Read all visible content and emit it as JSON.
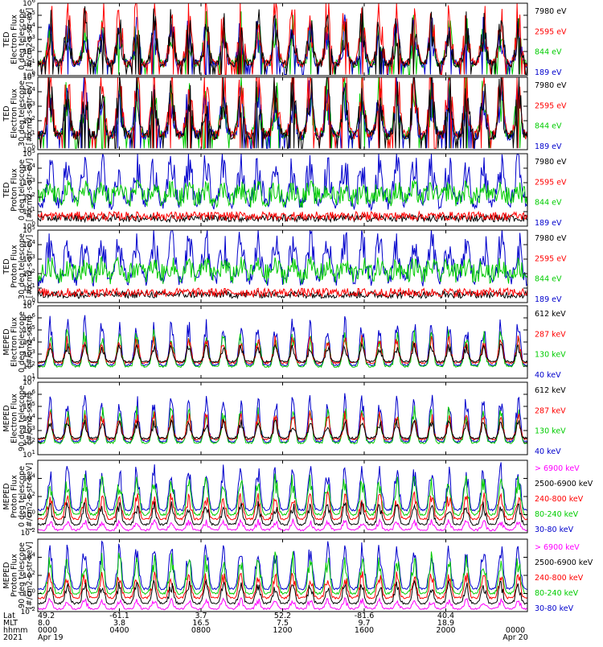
{
  "chart_data": [
    {
      "type": "line",
      "ylabel": [
        "TED",
        "Electron Flux",
        "0 deg telescope",
        "[#/cm2-s-str-eV]"
      ],
      "yscale": "log",
      "ylim_exp": [
        0,
        6
      ],
      "ytick_exp": [
        0,
        1,
        2,
        3,
        4,
        5,
        6
      ],
      "series": [
        {
          "name": "7980 eV",
          "color": "#000000"
        },
        {
          "name": "2595 eV",
          "color": "#ff0000"
        },
        {
          "name": "844 eV",
          "color": "#00cc00"
        },
        {
          "name": "189 eV",
          "color": "#0000cc"
        }
      ],
      "draw_order": [
        2,
        3,
        1,
        0
      ],
      "pattern": "ted_e"
    },
    {
      "type": "line",
      "ylabel": [
        "TED",
        "Electron Flux",
        "30 deg telescope",
        "[#/cm2-s-str-eV]"
      ],
      "yscale": "log",
      "ylim_exp": [
        0,
        5
      ],
      "ytick_exp": [
        0,
        1,
        2,
        3,
        4,
        5
      ],
      "series": [
        {
          "name": "7980 eV",
          "color": "#000000"
        },
        {
          "name": "2595 eV",
          "color": "#ff0000"
        },
        {
          "name": "844 eV",
          "color": "#00cc00"
        },
        {
          "name": "189 eV",
          "color": "#0000cc"
        }
      ],
      "draw_order": [
        2,
        3,
        1,
        0
      ],
      "pattern": "ted_e"
    },
    {
      "type": "line",
      "ylabel": [
        "TED",
        "Proton Flux",
        "0 deg telescope",
        "[#/cm2-s-str-eV]"
      ],
      "yscale": "log",
      "ylim_exp": [
        0,
        5
      ],
      "ytick_exp": [
        0,
        1,
        2,
        3,
        4,
        5
      ],
      "series": [
        {
          "name": "7980 eV",
          "color": "#000000"
        },
        {
          "name": "2595 eV",
          "color": "#ff0000"
        },
        {
          "name": "844 eV",
          "color": "#00cc00"
        },
        {
          "name": "189 eV",
          "color": "#0000cc"
        }
      ],
      "draw_order": [
        0,
        1,
        3,
        2
      ],
      "pattern": "ted_p"
    },
    {
      "type": "line",
      "ylabel": [
        "TED",
        "Proton Flux",
        "30 deg telescope",
        "[#/cm2-s-str-eV]"
      ],
      "yscale": "log",
      "ylim_exp": [
        0,
        5
      ],
      "ytick_exp": [
        0,
        1,
        2,
        3,
        4,
        5
      ],
      "series": [
        {
          "name": "7980 eV",
          "color": "#000000"
        },
        {
          "name": "2595 eV",
          "color": "#ff0000"
        },
        {
          "name": "844 eV",
          "color": "#00cc00"
        },
        {
          "name": "189 eV",
          "color": "#0000cc"
        }
      ],
      "draw_order": [
        0,
        1,
        3,
        2
      ],
      "pattern": "ted_p"
    },
    {
      "type": "line",
      "ylabel": [
        "MEPED",
        "Electron Flux",
        "0 deg telescope",
        "[#/cm2-s-str]"
      ],
      "yscale": "log",
      "ylim_exp": [
        1,
        7
      ],
      "ytick_exp": [
        1,
        2,
        3,
        4,
        5,
        6,
        7
      ],
      "series": [
        {
          "name": "612 keV",
          "color": "#000000"
        },
        {
          "name": "287 keV",
          "color": "#ff0000"
        },
        {
          "name": "130 keV",
          "color": "#00cc00"
        },
        {
          "name": "40 keV",
          "color": "#0000cc"
        }
      ],
      "draw_order": [
        3,
        2,
        1,
        0
      ],
      "pattern": "meped_e"
    },
    {
      "type": "line",
      "ylabel": [
        "MEPED",
        "Electron Flux",
        "90 deg telescope",
        "[#/cm2-s-str]"
      ],
      "yscale": "log",
      "ylim_exp": [
        1,
        7
      ],
      "ytick_exp": [
        1,
        2,
        3,
        4,
        5,
        6,
        7
      ],
      "series": [
        {
          "name": "612 keV",
          "color": "#000000"
        },
        {
          "name": "287 keV",
          "color": "#ff0000"
        },
        {
          "name": "130 keV",
          "color": "#00cc00"
        },
        {
          "name": "40 keV",
          "color": "#0000cc"
        }
      ],
      "draw_order": [
        3,
        2,
        1,
        0
      ],
      "pattern": "meped_e"
    },
    {
      "type": "line",
      "ylabel": [
        "MEPED",
        "Proton Flux",
        "0 deg telescope",
        "[#/cm2-s-str-keV]"
      ],
      "yscale": "log",
      "ylim_exp": [
        -2,
        6
      ],
      "ytick_exp": [
        -2,
        0,
        2,
        4
      ],
      "series": [
        {
          "name": "> 6900 keV",
          "color": "#ff00ff"
        },
        {
          "name": "2500-6900 keV",
          "color": "#000000"
        },
        {
          "name": "240-800 keV",
          "color": "#ff0000"
        },
        {
          "name": "80-240 keV",
          "color": "#00cc00"
        },
        {
          "name": "30-80 keV",
          "color": "#0000cc"
        }
      ],
      "draw_order": [
        4,
        3,
        2,
        1,
        0
      ],
      "pattern": "meped_p"
    },
    {
      "type": "line",
      "ylabel": [
        "MEPED",
        "Proton Flux",
        "90 deg telescope",
        "[#/cm2-s-str-keV]"
      ],
      "yscale": "log",
      "ylim_exp": [
        -2,
        6
      ],
      "ytick_exp": [
        -2,
        0,
        2,
        4
      ],
      "series": [
        {
          "name": "> 6900 keV",
          "color": "#ff00ff"
        },
        {
          "name": "2500-6900 keV",
          "color": "#000000"
        },
        {
          "name": "240-800 keV",
          "color": "#ff0000"
        },
        {
          "name": "80-240 keV",
          "color": "#00cc00"
        },
        {
          "name": "30-80 keV",
          "color": "#0000cc"
        }
      ],
      "draw_order": [
        4,
        3,
        2,
        1,
        0
      ],
      "pattern": "meped_p"
    }
  ],
  "x_axis": {
    "row_labels": [
      "Lat",
      "MLT",
      "hhmm",
      "2021"
    ],
    "hours": [
      0,
      4,
      8,
      12,
      16,
      20,
      24
    ],
    "columns": [
      {
        "lat": "49.2",
        "mlt": "8.0",
        "hhmm": "0000",
        "date": "Apr 19"
      },
      {
        "lat": "-61.1",
        "mlt": "3.8",
        "hhmm": "0400",
        "date": ""
      },
      {
        "lat": "3.7",
        "mlt": "16.5",
        "hhmm": "0800",
        "date": ""
      },
      {
        "lat": "52.2",
        "mlt": "7.5",
        "hhmm": "1200",
        "date": ""
      },
      {
        "lat": "-81.6",
        "mlt": "9.7",
        "hhmm": "1600",
        "date": ""
      },
      {
        "lat": "40.4",
        "mlt": "18.9",
        "hhmm": "2000",
        "date": ""
      },
      {
        "lat": "",
        "mlt": "",
        "hhmm": "0000",
        "date": "Apr 20"
      }
    ]
  }
}
